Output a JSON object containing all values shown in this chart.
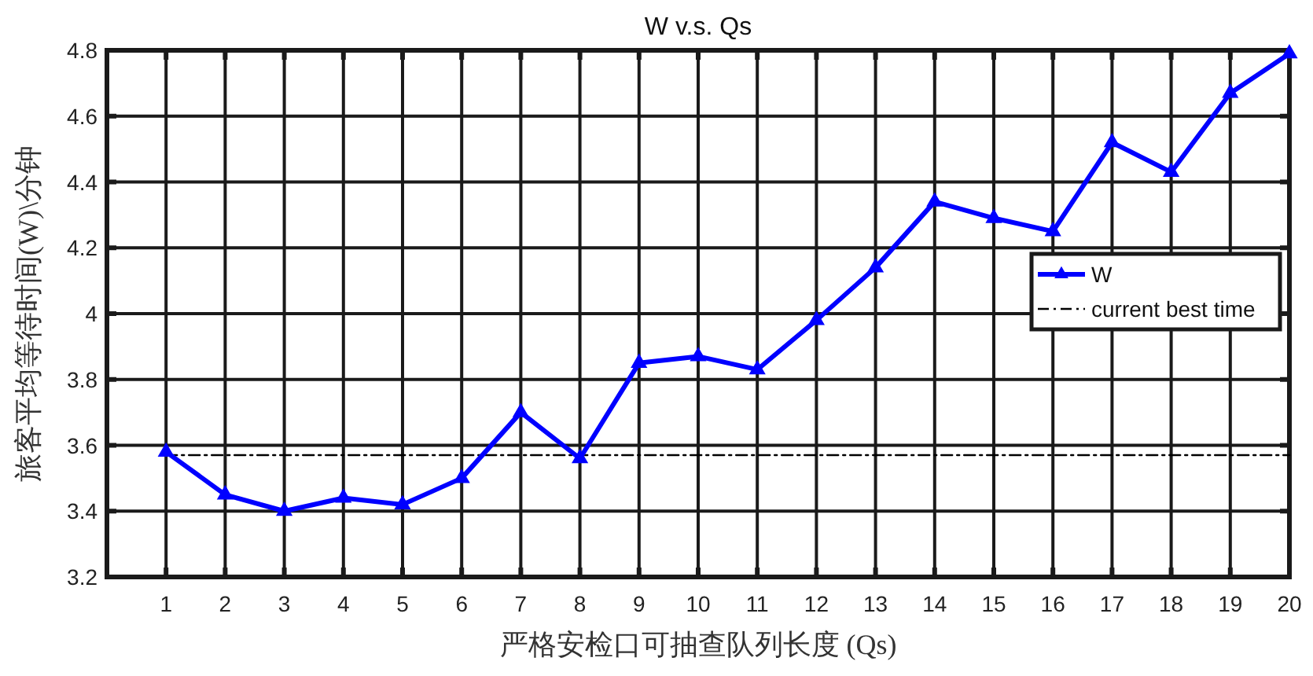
{
  "chart_data": {
    "type": "line",
    "title": "W v.s. Qs",
    "xlabel": "严格安检口可抽查队列长度 (Qs)",
    "ylabel": "旅客平均等待时间(W)\\分钟",
    "x": [
      1,
      2,
      3,
      4,
      5,
      6,
      7,
      8,
      9,
      10,
      11,
      12,
      13,
      14,
      15,
      16,
      17,
      18,
      19,
      20
    ],
    "series": [
      {
        "name": "W",
        "color": "#0000ff",
        "values": [
          3.58,
          3.45,
          3.4,
          3.44,
          3.42,
          3.5,
          3.7,
          3.56,
          3.85,
          3.87,
          3.83,
          3.98,
          4.14,
          4.34,
          4.29,
          4.25,
          4.52,
          4.43,
          4.67,
          4.79
        ],
        "marker": "triangle",
        "line_style": "solid"
      },
      {
        "name": "current best time",
        "type": "line",
        "color": "#000000",
        "x": [
          1,
          20
        ],
        "values": [
          3.57,
          3.57
        ],
        "marker": "none",
        "line_style": "dashed"
      }
    ],
    "xlim": [
      0,
      20
    ],
    "xticks": [
      1,
      2,
      3,
      4,
      5,
      6,
      7,
      8,
      9,
      10,
      11,
      12,
      13,
      14,
      15,
      16,
      17,
      18,
      19,
      20
    ],
    "ylim": [
      3.2,
      4.8
    ],
    "yticks": [
      3.2,
      3.4,
      3.6,
      3.8,
      4,
      4.2,
      4.4,
      4.6,
      4.8
    ],
    "grid": true,
    "legend": "right"
  }
}
